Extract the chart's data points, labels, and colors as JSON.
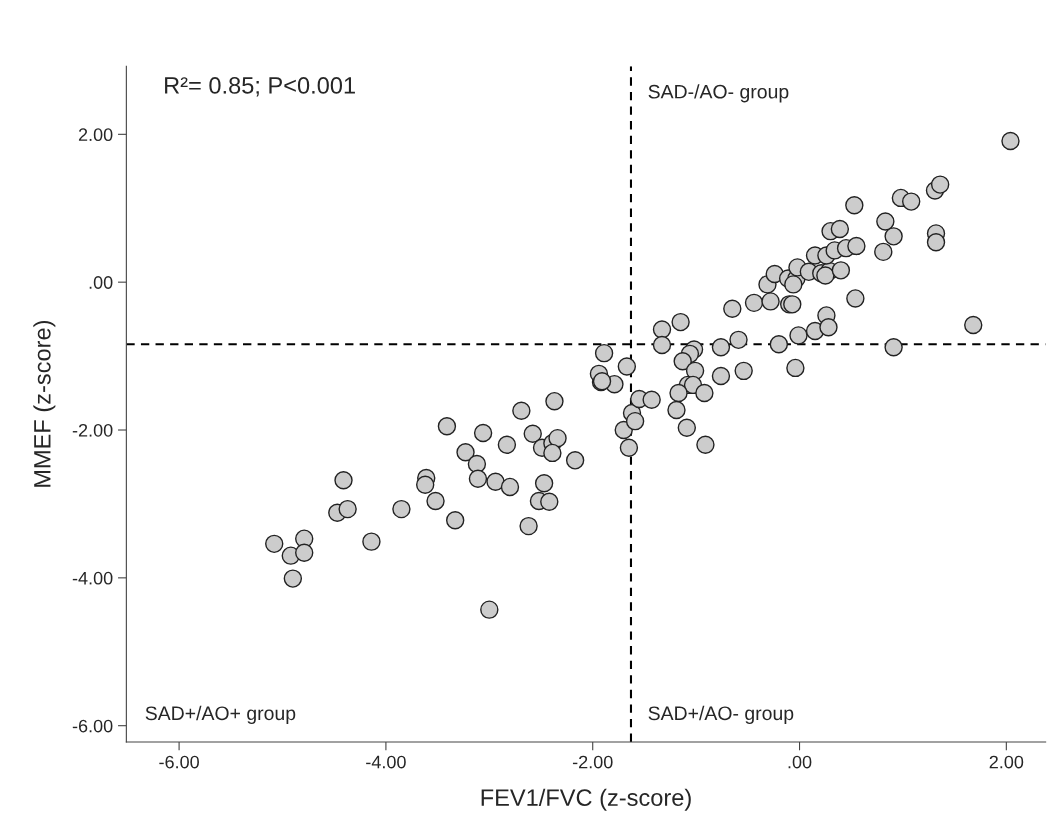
{
  "chart_data": {
    "type": "scatter",
    "xlabel": "FEV1/FVC (z-score)",
    "ylabel": "MMEF (z-score)",
    "xlim": [
      -6.51,
      2.38
    ],
    "ylim": [
      -6.22,
      2.92
    ],
    "xticks": [
      {
        "value": -6,
        "label": "-6.00"
      },
      {
        "value": -4,
        "label": "-4.00"
      },
      {
        "value": -2,
        "label": "-2.00"
      },
      {
        "value": 0,
        "label": ".00"
      },
      {
        "value": 2,
        "label": "2.00"
      }
    ],
    "yticks": [
      {
        "value": -6,
        "label": "-6.00"
      },
      {
        "value": -4,
        "label": "-4.00"
      },
      {
        "value": -2,
        "label": "-2.00"
      },
      {
        "value": 0,
        "label": ".00"
      },
      {
        "value": 2,
        "label": "2.00"
      }
    ],
    "marker": "circle",
    "grid": false,
    "legend": false,
    "ref_lines": [
      {
        "axis": "x",
        "value": -1.63,
        "color": "#000000",
        "line_style": "dashed"
      },
      {
        "axis": "y",
        "value": -0.84,
        "color": "#000000",
        "line_style": "dashed"
      }
    ],
    "annotations": [
      "R²= 0.85; P<0.001",
      "SAD-/AO- group",
      "SAD+/AO+ group",
      "SAD+/AO- group"
    ],
    "series": [
      {
        "color": "#cccccc",
        "x": [
          -5.08,
          -4.92,
          -4.79,
          -4.79,
          -4.9,
          -4.41,
          -4.47,
          -4.37,
          -4.14,
          -3.85,
          -3.61,
          -3.62,
          -3.52,
          -3.33,
          -3.41,
          -3.23,
          -3.12,
          -3.11,
          -3.06,
          -2.94,
          -2.8,
          -2.83,
          -2.69,
          -2.58,
          -2.49,
          -2.39,
          -2.34,
          -2.39,
          -2.47,
          -2.52,
          -2.42,
          -2.62,
          -2.37,
          -2.17,
          -3.0,
          -1.7,
          -1.65,
          -1.62,
          -1.59,
          -1.55,
          -1.92,
          -1.79,
          -1.89,
          -1.94,
          -1.91,
          -1.67,
          -1.43,
          -1.33,
          -1.33,
          -1.15,
          -1.02,
          -1.06,
          -1.13,
          -1.01,
          -1.08,
          -1.03,
          -1.17,
          -0.92,
          -1.19,
          -1.09,
          -0.91,
          -0.76,
          -0.76,
          -0.54,
          -0.59,
          -0.65,
          -0.44,
          -0.28,
          -0.2,
          -0.1,
          -0.07,
          -0.04,
          -0.01,
          0.15,
          0.26,
          0.28,
          0.54,
          -0.31,
          -0.24,
          -0.11,
          -0.03,
          -0.06,
          -0.02,
          0.09,
          0.21,
          0.29,
          0.25,
          0.4,
          0.15,
          0.26,
          0.34,
          0.45,
          0.55,
          0.3,
          0.39,
          0.53,
          0.81,
          0.83,
          0.91,
          0.98,
          1.08,
          0.91,
          1.32,
          1.32,
          1.31,
          1.36,
          1.68,
          2.04
        ],
        "values": [
          -3.54,
          -3.7,
          -3.47,
          -3.66,
          -4.01,
          -2.68,
          -3.12,
          -3.07,
          -3.51,
          -3.07,
          -2.65,
          -2.74,
          -2.96,
          -3.22,
          -1.95,
          -2.3,
          -2.46,
          -2.66,
          -2.04,
          -2.7,
          -2.77,
          -2.2,
          -1.74,
          -2.05,
          -2.24,
          -2.18,
          -2.11,
          -2.31,
          -2.72,
          -2.96,
          -2.97,
          -3.3,
          -1.61,
          -2.41,
          -4.43,
          -2.0,
          -2.24,
          -1.77,
          -1.88,
          -1.58,
          -1.35,
          -1.38,
          -0.96,
          -1.24,
          -1.34,
          -1.14,
          -1.59,
          -0.64,
          -0.85,
          -0.54,
          -0.91,
          -0.97,
          -1.07,
          -1.2,
          -1.39,
          -1.39,
          -1.5,
          -1.5,
          -1.73,
          -1.97,
          -2.2,
          -1.27,
          -0.88,
          -1.2,
          -0.78,
          -0.36,
          -0.28,
          -0.26,
          -0.84,
          -0.3,
          -0.3,
          -1.16,
          -0.72,
          -0.66,
          -0.45,
          -0.61,
          -0.22,
          -0.03,
          0.11,
          0.05,
          0.05,
          -0.03,
          0.2,
          0.14,
          0.12,
          0.15,
          0.09,
          0.16,
          0.36,
          0.36,
          0.43,
          0.46,
          0.49,
          0.69,
          0.72,
          1.04,
          0.41,
          0.82,
          0.62,
          1.14,
          1.09,
          -0.88,
          0.66,
          0.54,
          1.24,
          1.32,
          -0.58,
          1.91
        ]
      }
    ]
  }
}
